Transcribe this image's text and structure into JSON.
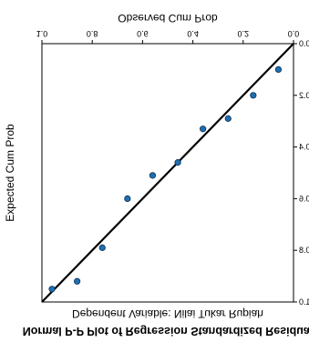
{
  "chart_data": {
    "type": "scatter",
    "title": "Normal P-P Plot of Regression Standardized Residual",
    "subtitle": "Dependent Variable: Nilai Tukar Rupiah",
    "xlabel": "Observed Cum Prob",
    "ylabel": "Expected Cum Prob",
    "xlim": [
      0.0,
      1.0
    ],
    "ylim": [
      0.0,
      1.0
    ],
    "x_ticks": [
      0.0,
      0.2,
      0.4,
      0.6,
      0.8,
      1.0
    ],
    "y_ticks": [
      0.0,
      0.2,
      0.4,
      0.6,
      0.8,
      1.0
    ],
    "x_tick_labels": [
      "0.0",
      "0.2",
      "0.4",
      "0.6",
      "0.8",
      "1.0"
    ],
    "y_tick_labels": [
      "0.0",
      "0.2",
      "0.4",
      "0.6",
      "0.8",
      "1.0"
    ],
    "grid": false,
    "reference_line": [
      [
        0.0,
        0.0
      ],
      [
        1.0,
        1.0
      ]
    ],
    "points": [
      {
        "x": 0.06,
        "y": 0.1
      },
      {
        "x": 0.16,
        "y": 0.2
      },
      {
        "x": 0.26,
        "y": 0.29
      },
      {
        "x": 0.36,
        "y": 0.33
      },
      {
        "x": 0.46,
        "y": 0.46
      },
      {
        "x": 0.56,
        "y": 0.51
      },
      {
        "x": 0.66,
        "y": 0.6
      },
      {
        "x": 0.76,
        "y": 0.79
      },
      {
        "x": 0.86,
        "y": 0.92
      },
      {
        "x": 0.96,
        "y": 0.95
      }
    ],
    "marker_color": "#1f6fb2"
  }
}
